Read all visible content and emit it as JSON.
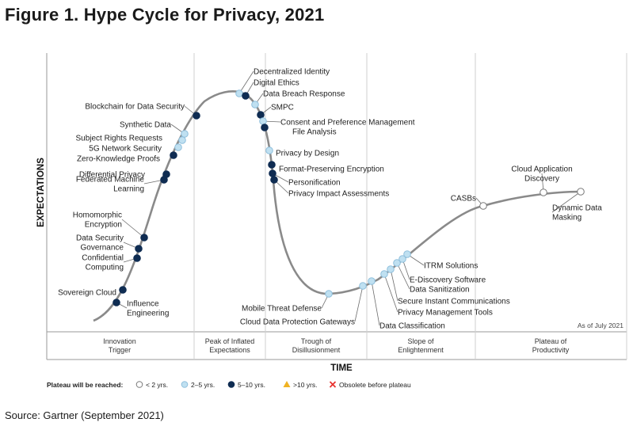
{
  "title": "Figure 1. Hype Cycle for Privacy, 2021",
  "source": "Source: Gartner (September 2021)",
  "chart_data": {
    "type": "hype-cycle",
    "ylabel": "EXPECTATIONS",
    "xlabel": "TIME",
    "as_of": "As of July 2021",
    "phases": [
      "Innovation\nTrigger",
      "Peak of Inflated\nExpectations",
      "Trough of\nDisillusionment",
      "Slope of\nEnlightenment",
      "Plateau of\nProductivity"
    ],
    "legend": {
      "title": "Plateau will be reached:",
      "items": [
        {
          "key": "lt2",
          "label": "< 2 yrs.",
          "color": "#ffffff"
        },
        {
          "key": "2to5",
          "label": "2–5 yrs.",
          "color": "#bfe0f1"
        },
        {
          "key": "5to10",
          "label": "5–10 yrs.",
          "color": "#0f2c52"
        },
        {
          "key": "gt10",
          "label": ">10 yrs.",
          "color": "#f0b323"
        },
        {
          "key": "obsolete",
          "label": "Obsolete before plateau",
          "color": "#e8312f"
        }
      ]
    },
    "technologies": [
      {
        "name": "Influence\nEngineering",
        "category": "5to10"
      },
      {
        "name": "Sovereign Cloud",
        "category": "5to10"
      },
      {
        "name": "Confidential\nComputing",
        "category": "5to10"
      },
      {
        "name": "Data Security\nGovernance",
        "category": "5to10"
      },
      {
        "name": "Homomorphic\nEncryption",
        "category": "5to10"
      },
      {
        "name": "Federated Machine\nLearning",
        "category": "5to10"
      },
      {
        "name": "Differential Privacy",
        "category": "5to10"
      },
      {
        "name": "Zero-Knowledge Proofs",
        "category": "5to10"
      },
      {
        "name": "5G Network Security",
        "category": "2to5"
      },
      {
        "name": "Subject Rights Requests",
        "category": "2to5"
      },
      {
        "name": "Synthetic Data",
        "category": "2to5"
      },
      {
        "name": "Blockchain for Data Security",
        "category": "5to10"
      },
      {
        "name": "Decentralized Identity",
        "category": "2to5"
      },
      {
        "name": "Digital Ethics",
        "category": "5to10"
      },
      {
        "name": "Data Breach Response",
        "category": "2to5"
      },
      {
        "name": "SMPC",
        "category": "5to10"
      },
      {
        "name": "Consent and Preference Management",
        "category": "2to5"
      },
      {
        "name": "File Analysis",
        "category": "5to10"
      },
      {
        "name": "Privacy by Design",
        "category": "2to5"
      },
      {
        "name": "Format-Preserving Encryption",
        "category": "5to10"
      },
      {
        "name": "Personification",
        "category": "5to10"
      },
      {
        "name": "Privacy Impact Assessments",
        "category": "5to10"
      },
      {
        "name": "Mobile Threat Defense",
        "category": "2to5"
      },
      {
        "name": "Cloud Data Protection Gateways",
        "category": "2to5"
      },
      {
        "name": "Data Classification",
        "category": "2to5"
      },
      {
        "name": "Privacy Management Tools",
        "category": "2to5"
      },
      {
        "name": "Secure Instant Communications",
        "category": "2to5"
      },
      {
        "name": "Data Sanitization",
        "category": "2to5"
      },
      {
        "name": "E-Discovery Software",
        "category": "2to5"
      },
      {
        "name": "ITRM Solutions",
        "category": "2to5"
      },
      {
        "name": "CASBs",
        "category": "lt2"
      },
      {
        "name": "Cloud Application\nDiscovery",
        "category": "lt2"
      },
      {
        "name": "Dynamic Data\nMasking",
        "category": "lt2"
      }
    ]
  }
}
